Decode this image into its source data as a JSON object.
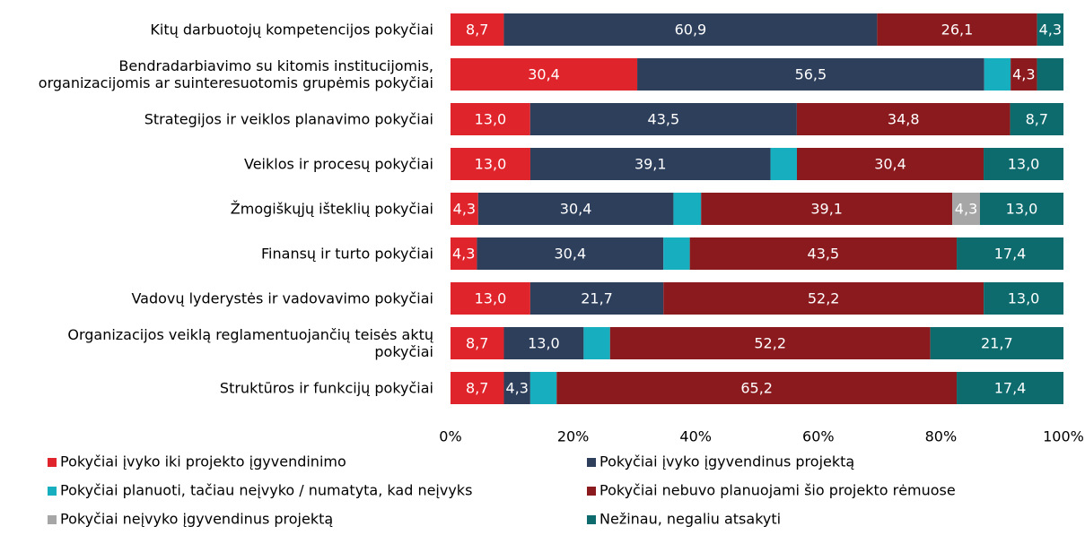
{
  "chart_data": {
    "type": "stacked-bar-horizontal",
    "categories": [
      "Kitų darbuotojų kompetencijos pokyčiai",
      "Bendradarbiavimo su kitomis institucijomis,\norganizacijomis ar suinteresuotomis grupėmis pokyčiai",
      "Strategijos ir veiklos planavimo pokyčiai",
      "Veiklos ir procesų pokyčiai",
      "Žmogiškųjų išteklių pokyčiai",
      "Finansų ir turto pokyčiai",
      "Vadovų lyderystės ir vadovavimo pokyčiai",
      "Organizacijos veiklą reglamentuojančių teisės aktų\npokyčiai",
      "Struktūros ir funkcijų pokyčiai"
    ],
    "series": [
      {
        "name": "Pokyčiai įvyko iki projekto įgyvendinimo",
        "color": "#e0242c",
        "values": [
          8.7,
          30.4,
          13.0,
          13.0,
          4.3,
          4.3,
          13.0,
          8.7,
          8.7
        ],
        "value_labels": [
          "8,7",
          "30,4",
          "13,0",
          "13,0",
          "4,3",
          "4,3",
          "13,0",
          "8,7",
          "8,7"
        ]
      },
      {
        "name": "Pokyčiai įvyko įgyvendinus projektą",
        "color": "#2e3f5c",
        "values": [
          60.9,
          56.5,
          43.5,
          39.1,
          30.4,
          30.4,
          21.7,
          13.0,
          4.3
        ],
        "value_labels": [
          "60,9",
          "56,5",
          "43,5",
          "39,1",
          "30,4",
          "30,4",
          "21,7",
          "13,0",
          "4,3"
        ]
      },
      {
        "name": "Pokyčiai planuoti, tačiau neįvyko  / numatyta, kad neįvyks",
        "color": "#17aec0",
        "values": [
          null,
          4.3,
          null,
          4.3,
          4.3,
          4.3,
          null,
          4.3,
          4.3
        ],
        "value_labels": [
          null,
          null,
          null,
          null,
          null,
          null,
          null,
          null,
          null
        ]
      },
      {
        "name": "Pokyčiai nebuvo planuojami šio projekto rėmuose",
        "color": "#8b1a1e",
        "values": [
          26.1,
          4.3,
          34.8,
          30.4,
          39.1,
          43.5,
          52.2,
          52.2,
          65.2
        ],
        "value_labels": [
          "26,1",
          "4,3",
          "34,8",
          "30,4",
          "39,1",
          "43,5",
          "52,2",
          "52,2",
          "65,2"
        ]
      },
      {
        "name": "Pokyčiai neįvyko įgyvendinus projektą",
        "color": "#a6a6a6",
        "values": [
          null,
          null,
          null,
          null,
          4.3,
          null,
          null,
          null,
          null
        ],
        "value_labels": [
          null,
          null,
          null,
          null,
          "4,3",
          null,
          null,
          null,
          null
        ]
      },
      {
        "name": "Nežinau, negaliu atsakyti",
        "color": "#0d6b6e",
        "values": [
          4.3,
          4.3,
          8.7,
          13.0,
          13.0,
          17.4,
          13.0,
          21.7,
          17.4
        ],
        "value_labels": [
          "4,3",
          null,
          "8,7",
          "13,0",
          "13,0",
          "17,4",
          "13,0",
          "21,7",
          "17,4"
        ]
      }
    ],
    "xlim": [
      0,
      100
    ],
    "xticks": [
      {
        "value": 0,
        "label": "0%"
      },
      {
        "value": 20,
        "label": "20%"
      },
      {
        "value": 40,
        "label": "40%"
      },
      {
        "value": 60,
        "label": "60%"
      },
      {
        "value": 80,
        "label": "80%"
      },
      {
        "value": 100,
        "label": "100%"
      }
    ],
    "stacking": "percent",
    "legend": "bottom"
  }
}
